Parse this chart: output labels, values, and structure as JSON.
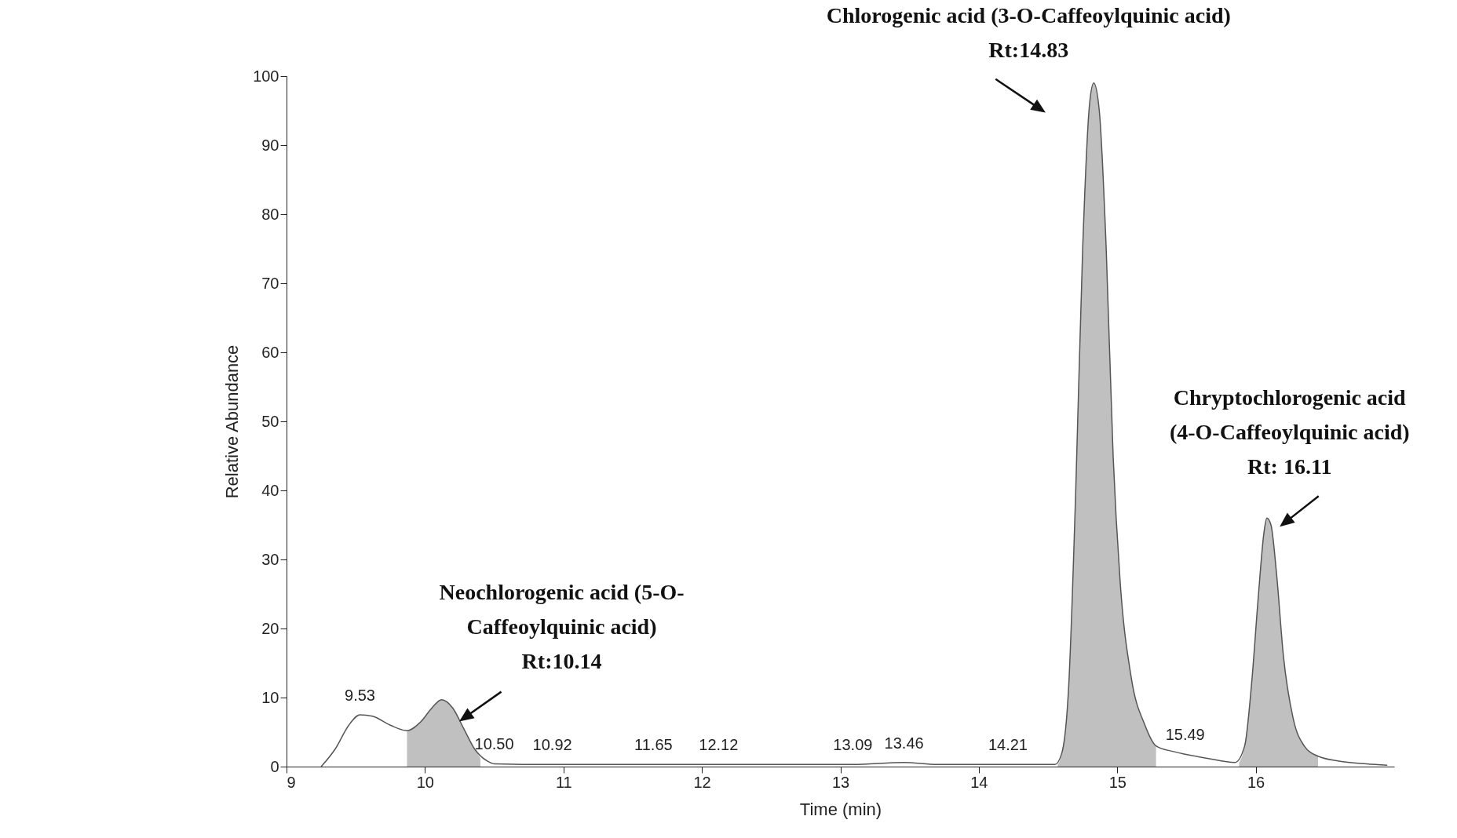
{
  "chart_data": {
    "type": "line",
    "xlabel": "Time (min)",
    "ylabel": "Relative Abundance",
    "xlim": [
      9,
      17
    ],
    "ylim": [
      0,
      100
    ],
    "xticks": [
      9,
      10,
      11,
      12,
      13,
      14,
      15,
      16
    ],
    "yticks": [
      0,
      10,
      20,
      30,
      40,
      50,
      60,
      70,
      80,
      90,
      100
    ],
    "grid": false,
    "series": [
      {
        "type": "area",
        "color": "#c0c0c0",
        "x": [
          9.87,
          9.97,
          10.05,
          10.12,
          10.2,
          10.28,
          10.36,
          10.4
        ],
        "values": [
          5.2,
          6.5,
          8.5,
          9.7,
          8.5,
          5.5,
          2.5,
          1.2
        ]
      },
      {
        "type": "area",
        "color": "#c0c0c0",
        "x": [
          14.57,
          14.6,
          14.65,
          14.7,
          14.75,
          14.8,
          14.83,
          14.87,
          14.92,
          14.97,
          15.02,
          15.1,
          15.2,
          15.28
        ],
        "values": [
          0.3,
          2,
          12,
          40,
          75,
          96,
          99,
          95,
          75,
          45,
          27,
          13,
          6,
          3
        ]
      },
      {
        "type": "area",
        "color": "#c0c0c0",
        "x": [
          15.88,
          15.92,
          15.97,
          16.02,
          16.06,
          16.08,
          16.11,
          16.15,
          16.2,
          16.27,
          16.35,
          16.45
        ],
        "values": [
          0.6,
          3,
          12,
          25,
          34,
          36,
          35,
          28,
          16,
          7,
          3,
          1.5
        ]
      },
      {
        "color": "#555555",
        "x": [
          9.25,
          9.35,
          9.45,
          9.53,
          9.62,
          9.75,
          9.87,
          9.97,
          10.05,
          10.12,
          10.2,
          10.28,
          10.36,
          10.45,
          10.5,
          10.92,
          11.65,
          12.12,
          13.09,
          13.46,
          13.7,
          14.21,
          14.55,
          14.6,
          14.65,
          14.7,
          14.75,
          14.8,
          14.83,
          14.87,
          14.92,
          14.97,
          15.02,
          15.1,
          15.2,
          15.28,
          15.4,
          15.49,
          15.65,
          15.85,
          15.92,
          15.97,
          16.02,
          16.06,
          16.08,
          16.11,
          16.15,
          16.2,
          16.27,
          16.35,
          16.45,
          16.6,
          16.8,
          16.95
        ],
        "values": [
          0,
          2.5,
          6,
          7.5,
          7.3,
          6,
          5.2,
          6.5,
          8.5,
          9.7,
          8.5,
          5.5,
          2.5,
          0.8,
          0.4,
          0.3,
          0.3,
          0.3,
          0.3,
          0.6,
          0.3,
          0.3,
          0.3,
          2,
          12,
          40,
          75,
          96,
          99,
          95,
          75,
          45,
          27,
          13,
          6,
          3,
          2.2,
          1.8,
          1.2,
          0.6,
          3,
          12,
          25,
          34,
          36,
          35,
          28,
          16,
          7,
          3,
          1.5,
          0.8,
          0.4,
          0.2
        ]
      }
    ],
    "annotations": [
      {
        "text": "Neochlorogenic acid (5-O-\nCaffeoylquinic acid)\nRt:10.14",
        "x": 10.12,
        "y": 9.7
      },
      {
        "text": "Chlorogenic acid (3-O-Caffeoylquinic acid)\nRt:14.83",
        "x": 14.83,
        "y": 99
      },
      {
        "text": "Chryptochlorogenic acid\n(4-O-Caffeoylquinic acid)\nRt: 16.11",
        "x": 16.08,
        "y": 36
      },
      {
        "text": "9.53",
        "x": 9.53,
        "y": 7.5
      },
      {
        "text": "10.50",
        "x": 10.5,
        "y": 0.4
      },
      {
        "text": "10.92",
        "x": 10.92,
        "y": 0.3
      },
      {
        "text": "11.65",
        "x": 11.65,
        "y": 0.3
      },
      {
        "text": "12.12",
        "x": 12.12,
        "y": 0.3
      },
      {
        "text": "13.09",
        "x": 13.09,
        "y": 0.3
      },
      {
        "text": "13.46",
        "x": 13.46,
        "y": 0.6
      },
      {
        "text": "14.21",
        "x": 14.21,
        "y": 0.3
      },
      {
        "text": "15.49",
        "x": 15.49,
        "y": 1.8
      }
    ]
  }
}
